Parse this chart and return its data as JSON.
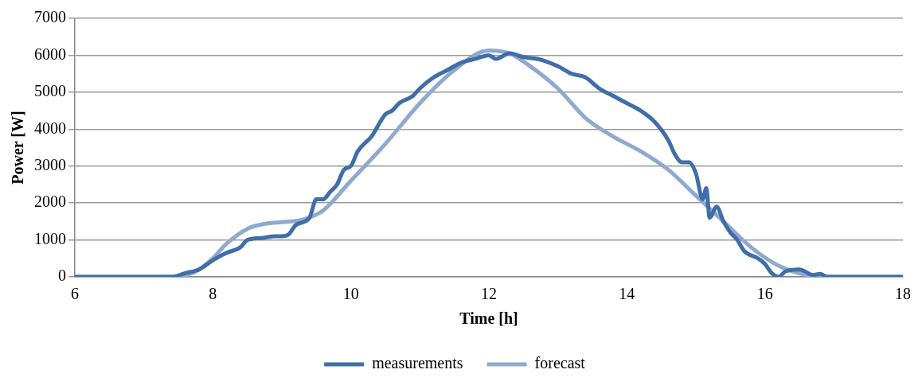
{
  "chart_data": {
    "type": "line",
    "xlabel": "Time [h]",
    "ylabel": "Power [W]",
    "xlim": [
      6,
      18
    ],
    "xticks": [
      6,
      8,
      10,
      12,
      14,
      16,
      18
    ],
    "ylim": [
      0,
      7000
    ],
    "yticks": [
      0,
      1000,
      2000,
      3000,
      4000,
      5000,
      6000,
      7000
    ],
    "grid": "y",
    "legend": "bottom",
    "marker": "none",
    "line_style": "solid",
    "series": [
      {
        "name": "measurements",
        "color": "#3f6ea8",
        "x": [
          6,
          7.4,
          7.6,
          7.8,
          8.0,
          8.2,
          8.4,
          8.5,
          8.7,
          8.9,
          9.0,
          9.1,
          9.2,
          9.4,
          9.5,
          9.6,
          9.7,
          9.8,
          9.9,
          10.0,
          10.1,
          10.3,
          10.5,
          10.6,
          10.7,
          10.9,
          11.0,
          11.2,
          11.4,
          11.6,
          11.8,
          12.0,
          12.1,
          12.3,
          12.5,
          12.7,
          12.8,
          13.0,
          13.2,
          13.4,
          13.6,
          13.8,
          14.0,
          14.2,
          14.4,
          14.6,
          14.7,
          14.8,
          14.9,
          15.0,
          15.1,
          15.15,
          15.2,
          15.3,
          15.4,
          15.5,
          15.6,
          15.7,
          15.9,
          16.0,
          16.1,
          16.2,
          16.3,
          16.5,
          16.7,
          16.8,
          16.9,
          18
        ],
        "values": [
          0,
          0,
          100,
          200,
          450,
          650,
          800,
          1000,
          1050,
          1100,
          1100,
          1150,
          1400,
          1600,
          2100,
          2100,
          2300,
          2500,
          2900,
          3000,
          3400,
          3800,
          4400,
          4500,
          4700,
          4900,
          5100,
          5400,
          5600,
          5800,
          5900,
          6000,
          5900,
          6050,
          5950,
          5900,
          5850,
          5700,
          5500,
          5400,
          5100,
          4900,
          4700,
          4500,
          4200,
          3700,
          3300,
          3100,
          3100,
          2800,
          2100,
          2400,
          1600,
          1900,
          1500,
          1200,
          1000,
          700,
          500,
          350,
          100,
          0,
          150,
          200,
          50,
          80,
          0,
          0
        ]
      },
      {
        "name": "forecast",
        "color": "#8fa9cf",
        "x": [
          6,
          7.5,
          7.8,
          8.0,
          8.2,
          8.5,
          8.8,
          9.0,
          9.3,
          9.6,
          10.0,
          10.5,
          11.0,
          11.5,
          12.0,
          12.3,
          12.6,
          13.0,
          13.4,
          13.8,
          14.2,
          14.6,
          15.0,
          15.4,
          15.8,
          16.2,
          16.6,
          17.0,
          18
        ],
        "values": [
          0,
          0,
          200,
          500,
          900,
          1300,
          1450,
          1480,
          1550,
          1800,
          2600,
          3600,
          4700,
          5600,
          6130,
          6050,
          5700,
          5100,
          4300,
          3800,
          3400,
          2900,
          2200,
          1500,
          800,
          300,
          50,
          0,
          0
        ]
      }
    ]
  }
}
